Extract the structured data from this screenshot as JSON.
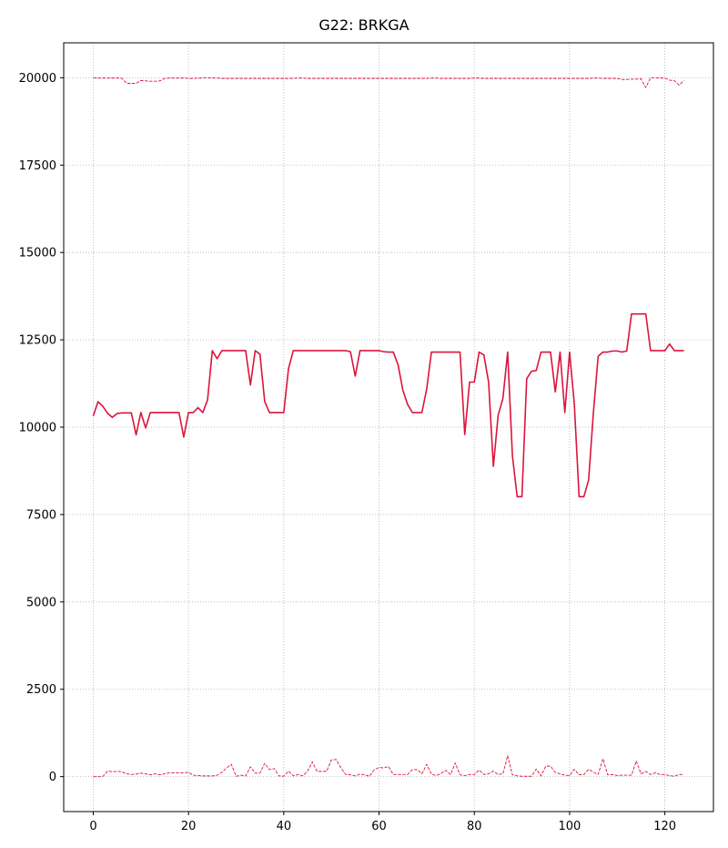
{
  "chart_data": {
    "type": "line",
    "title": "G22: BRKGA",
    "xlabel": "",
    "ylabel": "",
    "xlim": [
      -6.2,
      130.2
    ],
    "ylim": [
      -1000,
      21000
    ],
    "xticks": [
      0,
      20,
      40,
      60,
      80,
      100,
      120
    ],
    "yticks": [
      0,
      2500,
      5000,
      7500,
      10000,
      12500,
      15000,
      17500,
      20000
    ],
    "grid": true,
    "color": "#dc143c",
    "series": [
      {
        "style": "solid",
        "values": [
          10320,
          10730,
          10600,
          10400,
          10280,
          10390,
          10410,
          10410,
          10410,
          9780,
          10420,
          9980,
          10420,
          10420,
          10420,
          10420,
          10420,
          10420,
          10420,
          9720,
          10420,
          10420,
          10560,
          10420,
          10780,
          12190,
          11960,
          12190,
          12190,
          12190,
          12190,
          12190,
          12190,
          11210,
          12190,
          12090,
          10730,
          10420,
          10420,
          10420,
          10420,
          11680,
          12190,
          12190,
          12190,
          12190,
          12190,
          12190,
          12190,
          12190,
          12190,
          12190,
          12190,
          12190,
          12160,
          11460,
          12190,
          12190,
          12190,
          12190,
          12190,
          12160,
          12150,
          12150,
          11780,
          11060,
          10650,
          10420,
          10420,
          10420,
          11090,
          12150,
          12150,
          12150,
          12150,
          12150,
          12150,
          12150,
          9790,
          11290,
          11290,
          12150,
          12070,
          11290,
          8880,
          10340,
          10820,
          12150,
          9180,
          8010,
          8010,
          11390,
          11600,
          11620,
          12150,
          12150,
          12150,
          11010,
          12150,
          10420,
          12150,
          10650,
          8010,
          8010,
          8490,
          10420,
          12030,
          12150,
          12150,
          12180,
          12180,
          12150,
          12180,
          13240,
          13240,
          13240,
          13240,
          12190,
          12190,
          12190,
          12190,
          12380,
          12190,
          12190,
          12190
        ]
      },
      {
        "style": "dashed",
        "values": [
          20000,
          19990,
          19990,
          19990,
          19990,
          19990,
          19990,
          19840,
          19840,
          19840,
          19920,
          19910,
          19900,
          19900,
          19910,
          19980,
          19990,
          19990,
          19990,
          19990,
          19980,
          19980,
          19990,
          19990,
          20000,
          19990,
          19990,
          19980,
          19980,
          19980,
          19980,
          19980,
          19980,
          19980,
          19980,
          19980,
          19980,
          19980,
          19980,
          19980,
          19980,
          19980,
          19980,
          19990,
          19990,
          19980,
          19980,
          19980,
          19980,
          19980,
          19980,
          19980,
          19980,
          19980,
          19980,
          19980,
          19980,
          19980,
          19980,
          19980,
          19980,
          19980,
          19980,
          19980,
          19980,
          19980,
          19980,
          19980,
          19980,
          19980,
          19980,
          19990,
          19990,
          19980,
          19980,
          19980,
          19980,
          19980,
          19980,
          19980,
          19990,
          19990,
          19980,
          19980,
          19980,
          19980,
          19980,
          19980,
          19980,
          19980,
          19980,
          19980,
          19980,
          19980,
          19980,
          19980,
          19980,
          19980,
          19980,
          19980,
          19980,
          19980,
          19980,
          19980,
          19980,
          19990,
          19990,
          19980,
          19980,
          19980,
          19980,
          19950,
          19950,
          19960,
          19960,
          19970,
          19720,
          20000,
          20000,
          19990,
          19990,
          19930,
          19920,
          19790,
          19920
        ]
      },
      {
        "style": "dashed",
        "values": [
          0,
          0,
          0,
          160,
          140,
          150,
          140,
          80,
          60,
          70,
          100,
          80,
          50,
          80,
          50,
          80,
          110,
          110,
          110,
          110,
          120,
          40,
          30,
          20,
          20,
          20,
          40,
          120,
          250,
          350,
          10,
          40,
          20,
          280,
          100,
          100,
          380,
          200,
          230,
          20,
          10,
          160,
          20,
          60,
          20,
          160,
          420,
          150,
          150,
          150,
          480,
          490,
          250,
          60,
          50,
          20,
          70,
          50,
          10,
          200,
          260,
          250,
          290,
          60,
          60,
          60,
          60,
          200,
          200,
          80,
          350,
          70,
          30,
          90,
          180,
          60,
          390,
          50,
          30,
          60,
          60,
          190,
          60,
          80,
          160,
          60,
          80,
          600,
          50,
          20,
          10,
          10,
          10,
          220,
          20,
          300,
          300,
          120,
          80,
          40,
          30,
          210,
          50,
          60,
          210,
          130,
          60,
          510,
          50,
          60,
          30,
          40,
          40,
          40,
          450,
          80,
          150,
          60,
          110,
          60,
          60,
          30,
          10,
          60,
          60
        ]
      }
    ]
  }
}
